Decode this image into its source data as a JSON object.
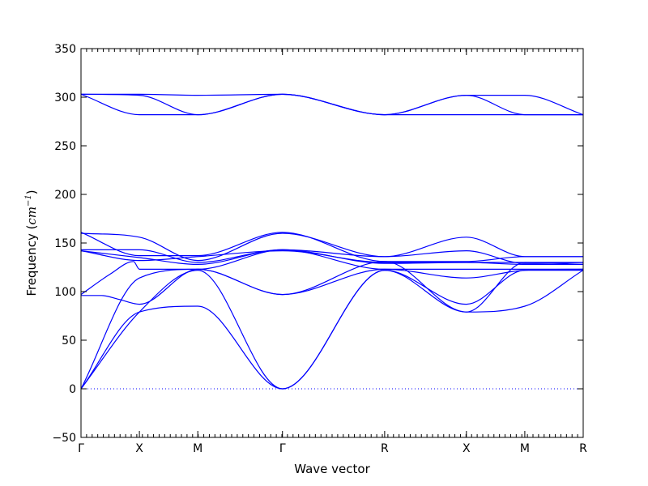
{
  "chart_data": {
    "type": "line",
    "title": "",
    "xlabel": "Wave vector",
    "ylabel_prefix": "Frequency (",
    "ylabel_unit_main": "cm",
    "ylabel_unit_exp": "−1",
    "ylabel_suffix": ")",
    "ylim": [
      -50,
      350
    ],
    "yticks": [
      -50,
      0,
      50,
      100,
      150,
      200,
      250,
      300,
      350
    ],
    "ytick_labels": [
      "−50",
      "0",
      "50",
      "100",
      "150",
      "200",
      "250",
      "300",
      "350"
    ],
    "zero_line": {
      "y": 0,
      "style": "dotted",
      "color": "#0000ff"
    },
    "grid": false,
    "line_color": "#0000ff",
    "path": {
      "labels": [
        "Γ",
        "X",
        "M",
        "Γ",
        "R",
        "X",
        "M",
        "R"
      ],
      "positions": [
        0,
        1,
        2,
        3.45,
        5.2,
        6.6,
        7.6,
        8.6
      ]
    },
    "series": [
      {
        "x": [
          0,
          1,
          2,
          3.45,
          5.2,
          6.6,
          7.6,
          8.6
        ],
        "y": [
          0,
          79,
          85,
          0,
          122,
          79,
          85,
          122
        ]
      },
      {
        "x": [
          0,
          1,
          2,
          3.45,
          5.2,
          6.6,
          7.6,
          8.6
        ],
        "y": [
          0,
          79,
          122,
          0,
          122,
          87,
          122,
          122
        ]
      },
      {
        "x": [
          0,
          1,
          2,
          3.45,
          5.2,
          6.6,
          7.6,
          8.6
        ],
        "y": [
          0,
          114,
          123,
          97,
          123,
          114,
          122,
          123
        ]
      },
      {
        "x": [
          0,
          0.35,
          0.65,
          1,
          2,
          3.45,
          5.2,
          6.6,
          7.6,
          8.6
        ],
        "y": [
          96,
          96,
          92,
          87,
          123,
          97,
          131,
          79,
          130,
          128
        ]
      },
      {
        "x": [
          0,
          0.5,
          0.9,
          1,
          2,
          3.45,
          5.2,
          6.6,
          7.6,
          8.6
        ],
        "y": [
          97,
          118,
          131,
          123,
          123,
          143,
          123,
          123,
          123,
          123
        ]
      },
      {
        "x": [
          0,
          1,
          2,
          3.45,
          5.2,
          6.6,
          7.6,
          8.6
        ],
        "y": [
          142,
          135,
          128,
          143,
          129,
          130,
          128,
          128
        ]
      },
      {
        "x": [
          0,
          1,
          2,
          3.45,
          5.2,
          6.6,
          7.6,
          8.6
        ],
        "y": [
          143,
          143,
          130,
          143,
          136,
          142,
          129,
          130
        ]
      },
      {
        "x": [
          0,
          1,
          2,
          3.45,
          5.2,
          6.6,
          7.6,
          8.6
        ],
        "y": [
          160,
          156,
          132,
          160,
          136,
          156,
          136,
          136
        ]
      },
      {
        "x": [
          0,
          1,
          2,
          3.45,
          5.2,
          6.6,
          7.6,
          8.6
        ],
        "y": [
          161,
          137,
          137,
          161,
          131,
          131,
          136,
          136
        ]
      },
      {
        "x": [
          0,
          1,
          2,
          3.45,
          5.2,
          6.6,
          7.6,
          8.6
        ],
        "y": [
          142,
          132,
          136,
          142,
          130,
          130,
          130,
          130
        ]
      },
      {
        "x": [
          0,
          1,
          2,
          3.45,
          5.2,
          6.6,
          7.6,
          8.6
        ],
        "y": [
          303,
          282,
          282,
          303,
          282,
          282,
          282,
          282
        ]
      },
      {
        "x": [
          0,
          1,
          2,
          3.45,
          5.2,
          6.6,
          7.6,
          8.6
        ],
        "y": [
          303,
          302,
          282,
          303,
          282,
          302,
          282,
          282
        ]
      },
      {
        "x": [
          0,
          1,
          2,
          3.45,
          5.2,
          6.6,
          7.6,
          8.6
        ],
        "y": [
          303,
          303,
          302,
          303,
          282,
          302,
          302,
          282
        ]
      }
    ]
  }
}
